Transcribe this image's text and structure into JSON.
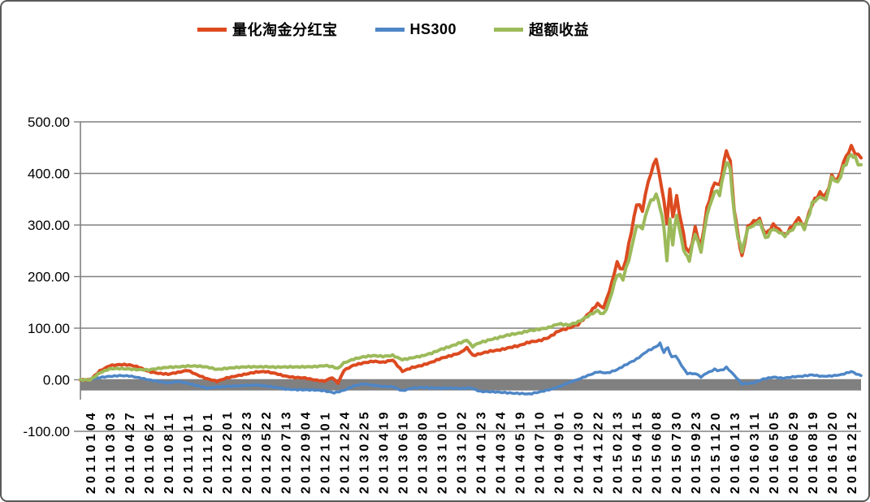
{
  "figure": {
    "background": "#ffffff",
    "border_color": "#595959",
    "gridline_color": "#808080",
    "axis_color": "#808080"
  },
  "legend": {
    "position": "top-center",
    "items": [
      {
        "key": "fund",
        "label": "量化淘金分红宝",
        "color": "#DC4A20",
        "swatch": "line-dash-icon"
      },
      {
        "key": "hs300",
        "label": "HS300",
        "color": "#4E86C6",
        "swatch": "line-dash-icon"
      },
      {
        "key": "excess",
        "label": "超额收益",
        "color": "#9CBA5A",
        "swatch": "line-dash-icon"
      }
    ]
  },
  "chart_data": {
    "type": "line",
    "title": "",
    "xlabel": "",
    "ylabel": "",
    "grid": true,
    "legend_position": "top",
    "y_axis": {
      "range": [
        -100,
        500
      ],
      "ticks": [
        {
          "value": 500,
          "label": "500.00"
        },
        {
          "value": 400,
          "label": "400.00"
        },
        {
          "value": 300,
          "label": "300.00"
        },
        {
          "value": 200,
          "label": "200.00"
        },
        {
          "value": 100,
          "label": "100.00"
        },
        {
          "value": 0,
          "label": "0.00"
        },
        {
          "value": -100,
          "label": "-100.00"
        }
      ]
    },
    "x_axis": {
      "label_rotation": -90,
      "categories": [
        "20110104",
        "20110303",
        "20110427",
        "20110621",
        "20110811",
        "20111011",
        "20111201",
        "20120201",
        "20120323",
        "20120522",
        "20120713",
        "20120904",
        "20121101",
        "20121224",
        "20130225",
        "20130419",
        "20130619",
        "20130809",
        "20131010",
        "20131202",
        "20140123",
        "20140324",
        "20140519",
        "20140710",
        "20140901",
        "20141030",
        "20141222",
        "20150213",
        "20150415",
        "20150608",
        "20150730",
        "20150923",
        "20151120",
        "20160113",
        "20160311",
        "20160505",
        "20160629",
        "20160819",
        "20161020",
        "20161212"
      ]
    },
    "zero_band": {
      "color": "#808080",
      "from_value": 0,
      "to_value": -20
    },
    "series": [
      {
        "key": "fund",
        "name": "量化淘金分红宝",
        "color": "#DC4A20",
        "stroke_width": 4,
        "points": [
          [
            -0.5,
            0
          ],
          [
            0,
            0
          ],
          [
            0.5,
            18
          ],
          [
            1,
            28
          ],
          [
            1.5,
            29
          ],
          [
            2,
            28
          ],
          [
            2.5,
            24
          ],
          [
            3,
            16
          ],
          [
            3.5,
            12
          ],
          [
            4,
            10
          ],
          [
            4.5,
            14
          ],
          [
            5,
            19
          ],
          [
            5.5,
            10
          ],
          [
            6,
            2
          ],
          [
            6.5,
            -3
          ],
          [
            7,
            4
          ],
          [
            7.5,
            8
          ],
          [
            8,
            11
          ],
          [
            8.5,
            14
          ],
          [
            9,
            15
          ],
          [
            9.5,
            12
          ],
          [
            10,
            7
          ],
          [
            10.5,
            4
          ],
          [
            11,
            3
          ],
          [
            11.5,
            0
          ],
          [
            12,
            -2
          ],
          [
            12.4,
            4
          ],
          [
            12.7,
            -7
          ],
          [
            13,
            18
          ],
          [
            13.5,
            28
          ],
          [
            14,
            33
          ],
          [
            14.5,
            36
          ],
          [
            15,
            33
          ],
          [
            15.5,
            37
          ],
          [
            16,
            16
          ],
          [
            16.5,
            24
          ],
          [
            17,
            28
          ],
          [
            17.5,
            34
          ],
          [
            18,
            42
          ],
          [
            18.5,
            48
          ],
          [
            19,
            54
          ],
          [
            19.3,
            62
          ],
          [
            19.6,
            47
          ],
          [
            20,
            50
          ],
          [
            20.5,
            55
          ],
          [
            21,
            58
          ],
          [
            21.5,
            62
          ],
          [
            22,
            65
          ],
          [
            22.5,
            72
          ],
          [
            23,
            76
          ],
          [
            23.5,
            83
          ],
          [
            24,
            95
          ],
          [
            24.5,
            100
          ],
          [
            25,
            108
          ],
          [
            25.5,
            128
          ],
          [
            26,
            148
          ],
          [
            26.3,
            140
          ],
          [
            26.6,
            170
          ],
          [
            27,
            225
          ],
          [
            27.3,
            213
          ],
          [
            27.6,
            260
          ],
          [
            28,
            340
          ],
          [
            28.3,
            330
          ],
          [
            28.6,
            388
          ],
          [
            29,
            428
          ],
          [
            29.2,
            392
          ],
          [
            29.4,
            345
          ],
          [
            29.55,
            302
          ],
          [
            29.7,
            370
          ],
          [
            29.85,
            318
          ],
          [
            30.05,
            352
          ],
          [
            30.3,
            300
          ],
          [
            30.5,
            262
          ],
          [
            30.7,
            243
          ],
          [
            31,
            295
          ],
          [
            31.3,
            258
          ],
          [
            31.6,
            330
          ],
          [
            32,
            385
          ],
          [
            32.25,
            378
          ],
          [
            32.6,
            442
          ],
          [
            32.8,
            425
          ],
          [
            33,
            330
          ],
          [
            33.2,
            280
          ],
          [
            33.4,
            240
          ],
          [
            33.7,
            298
          ],
          [
            34,
            305
          ],
          [
            34.3,
            312
          ],
          [
            34.6,
            282
          ],
          [
            35,
            300
          ],
          [
            35.3,
            290
          ],
          [
            35.6,
            283
          ],
          [
            36,
            298
          ],
          [
            36.3,
            312
          ],
          [
            36.6,
            296
          ],
          [
            37,
            345
          ],
          [
            37.4,
            362
          ],
          [
            37.7,
            355
          ],
          [
            38,
            395
          ],
          [
            38.3,
            388
          ],
          [
            38.6,
            418
          ],
          [
            39,
            452
          ],
          [
            39.2,
            438
          ],
          [
            39.5,
            430
          ]
        ]
      },
      {
        "key": "hs300",
        "name": "HS300",
        "color": "#4E86C6",
        "stroke_width": 3.5,
        "points": [
          [
            -0.5,
            0
          ],
          [
            0,
            0
          ],
          [
            0.5,
            4
          ],
          [
            1,
            7
          ],
          [
            1.5,
            9
          ],
          [
            2,
            8
          ],
          [
            2.5,
            4
          ],
          [
            3,
            0
          ],
          [
            3.5,
            -3
          ],
          [
            4,
            -6
          ],
          [
            4.5,
            -4
          ],
          [
            5,
            -8
          ],
          [
            5.5,
            -12
          ],
          [
            6,
            -16
          ],
          [
            6.5,
            -14
          ],
          [
            7,
            -13
          ],
          [
            7.5,
            -12
          ],
          [
            8,
            -10
          ],
          [
            8.5,
            -9
          ],
          [
            9,
            -12
          ],
          [
            9.5,
            -15
          ],
          [
            10,
            -18
          ],
          [
            10.5,
            -19
          ],
          [
            11,
            -20
          ],
          [
            11.5,
            -21
          ],
          [
            12,
            -22
          ],
          [
            12.5,
            -25
          ],
          [
            13,
            -20
          ],
          [
            13.5,
            -12
          ],
          [
            14,
            -8
          ],
          [
            14.5,
            -10
          ],
          [
            15,
            -12
          ],
          [
            15.5,
            -13
          ],
          [
            16,
            -22
          ],
          [
            16.5,
            -17
          ],
          [
            17,
            -15
          ],
          [
            17.5,
            -16
          ],
          [
            18,
            -17
          ],
          [
            18.5,
            -17
          ],
          [
            19,
            -17
          ],
          [
            19.5,
            -15
          ],
          [
            20,
            -22
          ],
          [
            20.5,
            -23
          ],
          [
            21,
            -24
          ],
          [
            21.5,
            -25
          ],
          [
            22,
            -26
          ],
          [
            22.5,
            -28
          ],
          [
            23,
            -25
          ],
          [
            23.5,
            -20
          ],
          [
            24,
            -14
          ],
          [
            24.5,
            -6
          ],
          [
            25,
            0
          ],
          [
            25.5,
            8
          ],
          [
            26,
            16
          ],
          [
            26.5,
            14
          ],
          [
            27,
            20
          ],
          [
            27.5,
            30
          ],
          [
            28,
            40
          ],
          [
            28.5,
            55
          ],
          [
            29,
            64
          ],
          [
            29.2,
            70
          ],
          [
            29.4,
            54
          ],
          [
            29.6,
            62
          ],
          [
            29.8,
            44
          ],
          [
            30,
            46
          ],
          [
            30.3,
            28
          ],
          [
            30.6,
            12
          ],
          [
            31,
            12
          ],
          [
            31.3,
            5
          ],
          [
            31.6,
            14
          ],
          [
            32,
            20
          ],
          [
            32.3,
            17
          ],
          [
            32.6,
            24
          ],
          [
            33,
            10
          ],
          [
            33.4,
            -8
          ],
          [
            34,
            -6
          ],
          [
            34.5,
            1
          ],
          [
            35,
            5
          ],
          [
            35.5,
            3
          ],
          [
            36,
            5
          ],
          [
            36.5,
            6
          ],
          [
            37,
            9
          ],
          [
            37.5,
            7
          ],
          [
            38,
            8
          ],
          [
            38.5,
            10
          ],
          [
            39,
            16
          ],
          [
            39.5,
            8
          ]
        ]
      },
      {
        "key": "excess",
        "name": "超额收益",
        "color": "#9CBA5A",
        "stroke_width": 4,
        "points": [
          [
            -0.5,
            0
          ],
          [
            0,
            0
          ],
          [
            0.5,
            13
          ],
          [
            1,
            20
          ],
          [
            1.5,
            21
          ],
          [
            2,
            21
          ],
          [
            2.5,
            20
          ],
          [
            3,
            19
          ],
          [
            3.5,
            22
          ],
          [
            4,
            25
          ],
          [
            4.5,
            26
          ],
          [
            5,
            27
          ],
          [
            5.5,
            26
          ],
          [
            6,
            24
          ],
          [
            6.5,
            20
          ],
          [
            7,
            22
          ],
          [
            7.5,
            23
          ],
          [
            8,
            24
          ],
          [
            8.5,
            25
          ],
          [
            9,
            26
          ],
          [
            9.5,
            25
          ],
          [
            10,
            25
          ],
          [
            10.5,
            25
          ],
          [
            11,
            26
          ],
          [
            11.5,
            26
          ],
          [
            12,
            27
          ],
          [
            12.4,
            26
          ],
          [
            12.7,
            22
          ],
          [
            13,
            32
          ],
          [
            13.5,
            40
          ],
          [
            14,
            44
          ],
          [
            14.5,
            46
          ],
          [
            15,
            45
          ],
          [
            15.5,
            48
          ],
          [
            16,
            40
          ],
          [
            16.5,
            43
          ],
          [
            17,
            46
          ],
          [
            17.5,
            52
          ],
          [
            18,
            60
          ],
          [
            18.5,
            65
          ],
          [
            19,
            71
          ],
          [
            19.3,
            78
          ],
          [
            19.6,
            64
          ],
          [
            20,
            72
          ],
          [
            20.5,
            78
          ],
          [
            21,
            82
          ],
          [
            21.5,
            87
          ],
          [
            22,
            91
          ],
          [
            22.5,
            97
          ],
          [
            23,
            99
          ],
          [
            23.5,
            101
          ],
          [
            24,
            108
          ],
          [
            24.5,
            106
          ],
          [
            25,
            112
          ],
          [
            25.5,
            122
          ],
          [
            26,
            132
          ],
          [
            26.3,
            127
          ],
          [
            26.6,
            152
          ],
          [
            27,
            205
          ],
          [
            27.3,
            195
          ],
          [
            27.6,
            235
          ],
          [
            28,
            300
          ],
          [
            28.3,
            292
          ],
          [
            28.6,
            338
          ],
          [
            29,
            360
          ],
          [
            29.2,
            335
          ],
          [
            29.4,
            295
          ],
          [
            29.55,
            232
          ],
          [
            29.7,
            308
          ],
          [
            29.85,
            262
          ],
          [
            30.05,
            322
          ],
          [
            30.3,
            272
          ],
          [
            30.5,
            242
          ],
          [
            30.7,
            232
          ],
          [
            31,
            283
          ],
          [
            31.3,
            250
          ],
          [
            31.6,
            318
          ],
          [
            32,
            365
          ],
          [
            32.25,
            358
          ],
          [
            32.6,
            426
          ],
          [
            32.8,
            408
          ],
          [
            33,
            320
          ],
          [
            33.2,
            278
          ],
          [
            33.4,
            246
          ],
          [
            33.7,
            295
          ],
          [
            34,
            300
          ],
          [
            34.3,
            306
          ],
          [
            34.6,
            276
          ],
          [
            35,
            294
          ],
          [
            35.3,
            285
          ],
          [
            35.6,
            278
          ],
          [
            36,
            294
          ],
          [
            36.3,
            306
          ],
          [
            36.6,
            292
          ],
          [
            37,
            340
          ],
          [
            37.4,
            356
          ],
          [
            37.7,
            350
          ],
          [
            38,
            390
          ],
          [
            38.3,
            383
          ],
          [
            38.6,
            412
          ],
          [
            39,
            438
          ],
          [
            39.2,
            430
          ],
          [
            39.5,
            417
          ]
        ]
      }
    ]
  }
}
